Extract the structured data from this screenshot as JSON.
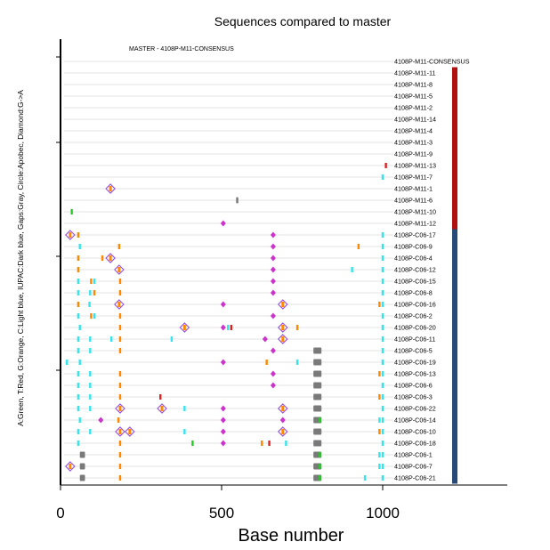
{
  "chart_data": {
    "type": "scatter",
    "title": "Sequences compared to master",
    "subtitle": "MASTER - 4108P-M11-CONSENSUS",
    "xlabel": "Base number",
    "ylabel": "A:Green, T:Red, G:Orange, C:Light blue, IUPAC:Dark blue, Gaps:Gray, Circle:Apobec, Diamond:G->A",
    "xlim": [
      0,
      1400
    ],
    "xticks": [
      0,
      500,
      1000
    ],
    "grid": "horizontal",
    "colors": {
      "A": "#22cc22",
      "T": "#dd2222",
      "G": "#ff8800",
      "C": "#33e5ee",
      "IUPAC": "#1a3a8a",
      "gap": "#7a7a7a",
      "apobec": "#cc33cc",
      "diamond": "#9955dd",
      "group_m11": "#b01010",
      "group_c06": "#284a78"
    },
    "sequences": [
      "4108P-M11-CONSENSUS",
      "4108P-M11-11",
      "4108P-M11-8",
      "4108P-M11-5",
      "4108P-M11-2",
      "4108P-M11-14",
      "4108P-M11-4",
      "4108P-M11-3",
      "4108P-M11-9",
      "4108P-M11-13",
      "4108P-M11-7",
      "4108P-M11-1",
      "4108P-M11-6",
      "4108P-M11-10",
      "4108P-M11-12",
      "4108P-C06-17",
      "4108P-C06-9",
      "4108P-C06-4",
      "4108P-C06-12",
      "4108P-C06-15",
      "4108P-C06-8",
      "4108P-C06-16",
      "4108P-C06-2",
      "4108P-C06-20",
      "4108P-C06-11",
      "4108P-C06-5",
      "4108P-C06-19",
      "4108P-C06-13",
      "4108P-C06-6",
      "4108P-C06-3",
      "4108P-C06-22",
      "4108P-C06-14",
      "4108P-C06-10",
      "4108P-C06-18",
      "4108P-C06-1",
      "4108P-C06-7",
      "4108P-C06-21"
    ],
    "groups": [
      {
        "first": 1,
        "last": 14,
        "color": "group_m11"
      },
      {
        "first": 15,
        "last": 36,
        "color": "group_c06"
      }
    ],
    "marks": [
      [],
      [],
      [],
      [],
      [],
      [],
      [],
      [],
      [],
      [
        {
          "x": 1010,
          "c": "T"
        }
      ],
      [
        {
          "x": 1000,
          "c": "C"
        }
      ],
      [
        {
          "x": 155,
          "c": "D"
        }
      ],
      [
        {
          "x": 545,
          "c": "gap"
        }
      ],
      [
        {
          "x": 35,
          "c": "A"
        }
      ],
      [
        {
          "x": 505,
          "c": "P"
        }
      ],
      [
        {
          "x": 30,
          "c": "D"
        },
        {
          "x": 55,
          "c": "G"
        },
        {
          "x": 660,
          "c": "P"
        },
        {
          "x": 1000,
          "c": "C"
        }
      ],
      [
        {
          "x": 60,
          "c": "C"
        },
        {
          "x": 182,
          "c": "G"
        },
        {
          "x": 660,
          "c": "P"
        },
        {
          "x": 925,
          "c": "G"
        },
        {
          "x": 1000,
          "c": "C"
        }
      ],
      [
        {
          "x": 55,
          "c": "G"
        },
        {
          "x": 130,
          "c": "G"
        },
        {
          "x": 155,
          "c": "D"
        },
        {
          "x": 660,
          "c": "P"
        },
        {
          "x": 1000,
          "c": "C"
        }
      ],
      [
        {
          "x": 55,
          "c": "G"
        },
        {
          "x": 182,
          "c": "D"
        },
        {
          "x": 660,
          "c": "P"
        },
        {
          "x": 905,
          "c": "C"
        },
        {
          "x": 1000,
          "c": "C"
        }
      ],
      [
        {
          "x": 55,
          "c": "C"
        },
        {
          "x": 95,
          "c": "G"
        },
        {
          "x": 105,
          "c": "C"
        },
        {
          "x": 185,
          "c": "G"
        },
        {
          "x": 660,
          "c": "P"
        },
        {
          "x": 1000,
          "c": "C"
        }
      ],
      [
        {
          "x": 55,
          "c": "C"
        },
        {
          "x": 92,
          "c": "C"
        },
        {
          "x": 105,
          "c": "G"
        },
        {
          "x": 185,
          "c": "G"
        },
        {
          "x": 660,
          "c": "P"
        },
        {
          "x": 1000,
          "c": "C"
        }
      ],
      [
        {
          "x": 55,
          "c": "G"
        },
        {
          "x": 90,
          "c": "C"
        },
        {
          "x": 182,
          "c": "D"
        },
        {
          "x": 505,
          "c": "P"
        },
        {
          "x": 690,
          "c": "D"
        },
        {
          "x": 990,
          "c": "G"
        },
        {
          "x": 1000,
          "c": "C"
        }
      ],
      [
        {
          "x": 55,
          "c": "C"
        },
        {
          "x": 95,
          "c": "G"
        },
        {
          "x": 105,
          "c": "C"
        },
        {
          "x": 185,
          "c": "G"
        },
        {
          "x": 660,
          "c": "P"
        },
        {
          "x": 1000,
          "c": "C"
        }
      ],
      [
        {
          "x": 60,
          "c": "C"
        },
        {
          "x": 185,
          "c": "G"
        },
        {
          "x": 385,
          "c": "D"
        },
        {
          "x": 505,
          "c": "P"
        },
        {
          "x": 520,
          "c": "C"
        },
        {
          "x": 530,
          "c": "T"
        },
        {
          "x": 690,
          "c": "D"
        },
        {
          "x": 735,
          "c": "G"
        },
        {
          "x": 1000,
          "c": "C"
        }
      ],
      [
        {
          "x": 55,
          "c": "C"
        },
        {
          "x": 92,
          "c": "C"
        },
        {
          "x": 158,
          "c": "C"
        },
        {
          "x": 185,
          "c": "G"
        },
        {
          "x": 345,
          "c": "C"
        },
        {
          "x": 635,
          "c": "P"
        },
        {
          "x": 690,
          "c": "D"
        },
        {
          "x": 1000,
          "c": "C"
        }
      ],
      [
        {
          "x": 55,
          "c": "C"
        },
        {
          "x": 92,
          "c": "C"
        },
        {
          "x": 185,
          "c": "G"
        },
        {
          "x": 660,
          "c": "P"
        },
        {
          "x": 785,
          "w": 25,
          "c": "gap"
        },
        {
          "x": 1000,
          "c": "C"
        }
      ],
      [
        {
          "x": 20,
          "c": "C"
        },
        {
          "x": 60,
          "c": "C"
        },
        {
          "x": 505,
          "c": "P"
        },
        {
          "x": 640,
          "c": "G"
        },
        {
          "x": 735,
          "c": "C"
        },
        {
          "x": 785,
          "w": 25,
          "c": "gap"
        },
        {
          "x": 1000,
          "c": "C"
        }
      ],
      [
        {
          "x": 55,
          "c": "C"
        },
        {
          "x": 92,
          "c": "C"
        },
        {
          "x": 185,
          "c": "G"
        },
        {
          "x": 660,
          "c": "P"
        },
        {
          "x": 785,
          "w": 25,
          "c": "gap"
        },
        {
          "x": 990,
          "c": "G"
        },
        {
          "x": 1000,
          "c": "C"
        }
      ],
      [
        {
          "x": 55,
          "c": "C"
        },
        {
          "x": 92,
          "c": "C"
        },
        {
          "x": 185,
          "c": "G"
        },
        {
          "x": 660,
          "c": "P"
        },
        {
          "x": 785,
          "w": 25,
          "c": "gap"
        },
        {
          "x": 1000,
          "c": "C"
        }
      ],
      [
        {
          "x": 55,
          "c": "C"
        },
        {
          "x": 92,
          "c": "C"
        },
        {
          "x": 185,
          "c": "G"
        },
        {
          "x": 310,
          "c": "T"
        },
        {
          "x": 785,
          "w": 25,
          "c": "gap"
        },
        {
          "x": 990,
          "c": "G"
        },
        {
          "x": 1000,
          "c": "C"
        }
      ],
      [
        {
          "x": 55,
          "c": "C"
        },
        {
          "x": 92,
          "c": "C"
        },
        {
          "x": 185,
          "c": "D"
        },
        {
          "x": 315,
          "c": "D"
        },
        {
          "x": 385,
          "c": "C"
        },
        {
          "x": 505,
          "c": "P"
        },
        {
          "x": 690,
          "c": "D"
        },
        {
          "x": 785,
          "w": 25,
          "c": "gap"
        },
        {
          "x": 1000,
          "c": "C"
        }
      ],
      [
        {
          "x": 60,
          "c": "C"
        },
        {
          "x": 125,
          "c": "P"
        },
        {
          "x": 180,
          "c": "G"
        },
        {
          "x": 505,
          "c": "P"
        },
        {
          "x": 690,
          "c": "P"
        },
        {
          "x": 785,
          "w": 25,
          "c": "gap"
        },
        {
          "x": 805,
          "c": "A"
        },
        {
          "x": 990,
          "c": "C"
        },
        {
          "x": 1000,
          "c": "C"
        }
      ],
      [
        {
          "x": 55,
          "c": "C"
        },
        {
          "x": 92,
          "c": "C"
        },
        {
          "x": 185,
          "c": "D"
        },
        {
          "x": 215,
          "c": "D"
        },
        {
          "x": 385,
          "c": "C"
        },
        {
          "x": 505,
          "c": "P"
        },
        {
          "x": 690,
          "c": "D"
        },
        {
          "x": 785,
          "w": 25,
          "c": "gap"
        },
        {
          "x": 990,
          "c": "G"
        },
        {
          "x": 1000,
          "c": "C"
        }
      ],
      [
        {
          "x": 55,
          "c": "C"
        },
        {
          "x": 185,
          "c": "G"
        },
        {
          "x": 410,
          "c": "A"
        },
        {
          "x": 505,
          "c": "P"
        },
        {
          "x": 625,
          "c": "G"
        },
        {
          "x": 648,
          "c": "T"
        },
        {
          "x": 700,
          "c": "C"
        },
        {
          "x": 785,
          "w": 25,
          "c": "gap"
        },
        {
          "x": 1000,
          "c": "C"
        }
      ],
      [
        {
          "x": 60,
          "w": 16,
          "c": "gap"
        },
        {
          "x": 185,
          "c": "G"
        },
        {
          "x": 785,
          "w": 25,
          "c": "gap"
        },
        {
          "x": 805,
          "c": "A"
        },
        {
          "x": 990,
          "c": "C"
        },
        {
          "x": 1000,
          "c": "C"
        }
      ],
      [
        {
          "x": 30,
          "c": "D"
        },
        {
          "x": 60,
          "w": 16,
          "c": "gap"
        },
        {
          "x": 185,
          "c": "G"
        },
        {
          "x": 785,
          "w": 25,
          "c": "gap"
        },
        {
          "x": 805,
          "c": "A"
        },
        {
          "x": 990,
          "c": "C"
        },
        {
          "x": 1000,
          "c": "C"
        }
      ],
      [
        {
          "x": 60,
          "w": 16,
          "c": "gap"
        },
        {
          "x": 185,
          "c": "G"
        },
        {
          "x": 785,
          "w": 25,
          "c": "gap"
        },
        {
          "x": 805,
          "c": "A"
        },
        {
          "x": 945,
          "c": "C"
        },
        {
          "x": 1000,
          "c": "C"
        }
      ]
    ]
  }
}
